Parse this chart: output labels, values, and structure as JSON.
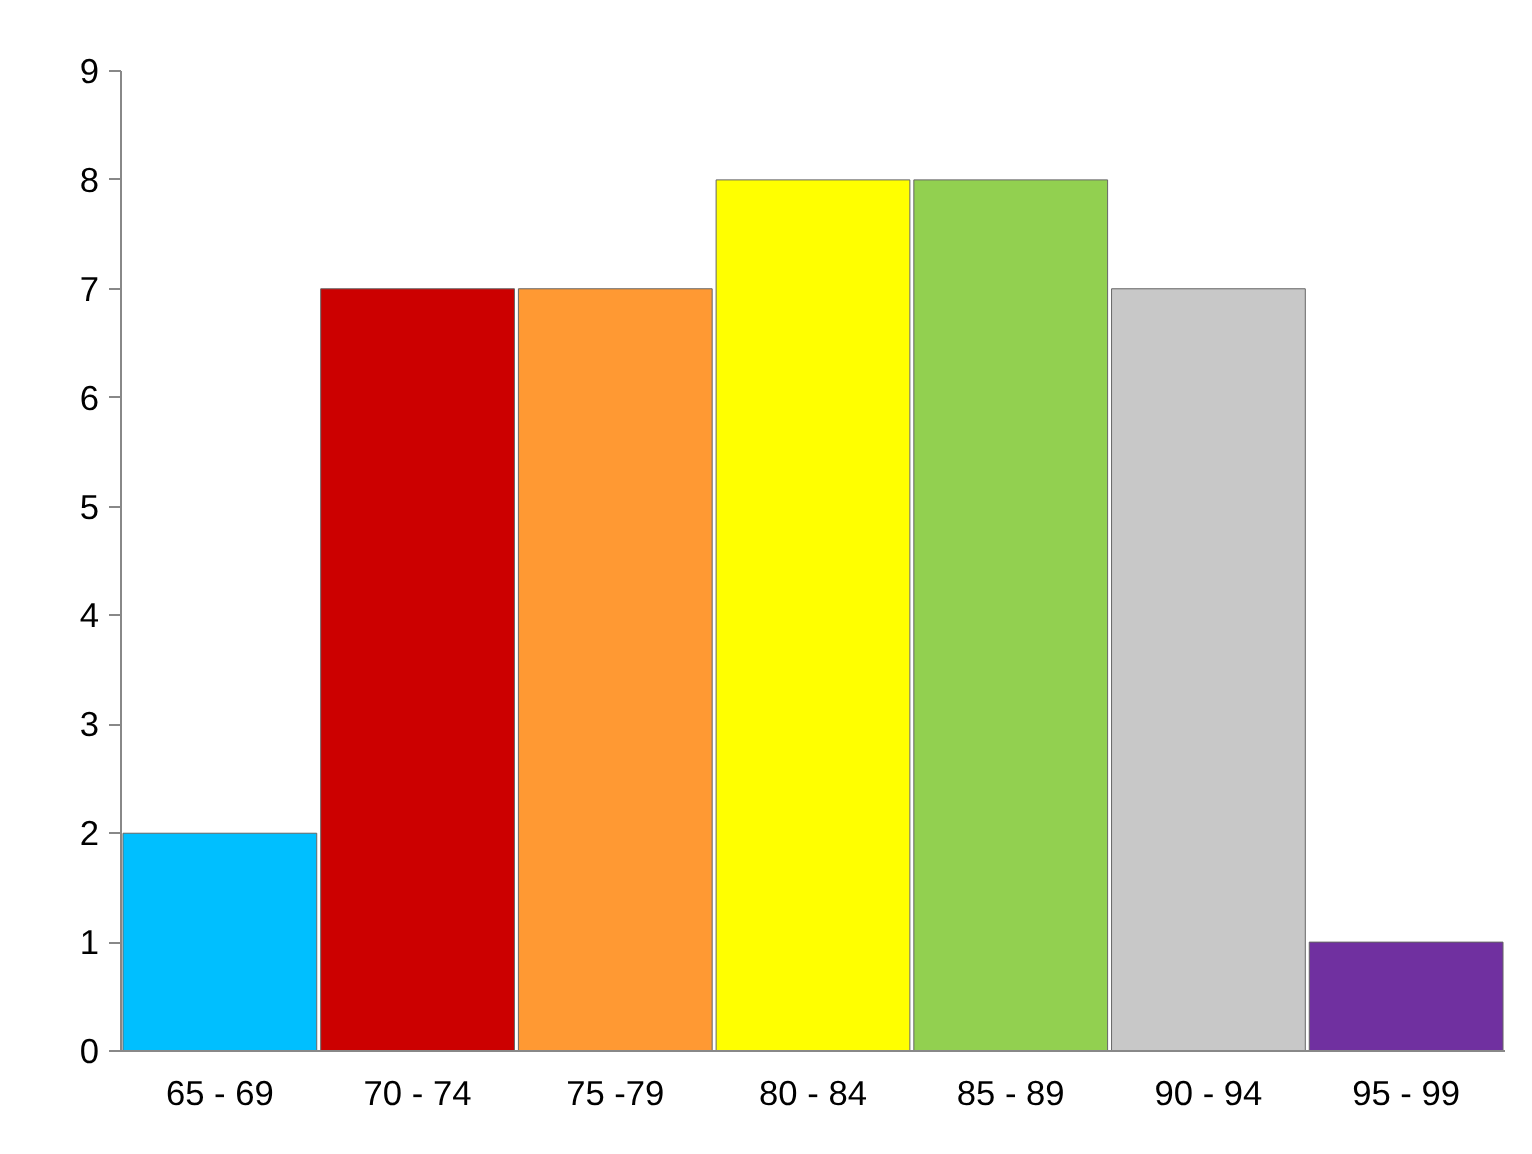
{
  "chart_data": {
    "type": "bar",
    "categories": [
      "65 - 69",
      "70 - 74",
      "75 -79",
      "80 - 84",
      "85 - 89",
      "90 - 94",
      "95 - 99"
    ],
    "values": [
      2,
      7,
      7,
      8,
      8,
      7,
      1
    ],
    "colors": [
      "#00bfff",
      "#cc0000",
      "#ff9933",
      "#ffff00",
      "#92d050",
      "#c8c8c8",
      "#7030a0"
    ],
    "ylim": [
      0,
      9
    ],
    "yticks": [
      0,
      1,
      2,
      3,
      4,
      5,
      6,
      7,
      8,
      9
    ],
    "grid": false
  }
}
